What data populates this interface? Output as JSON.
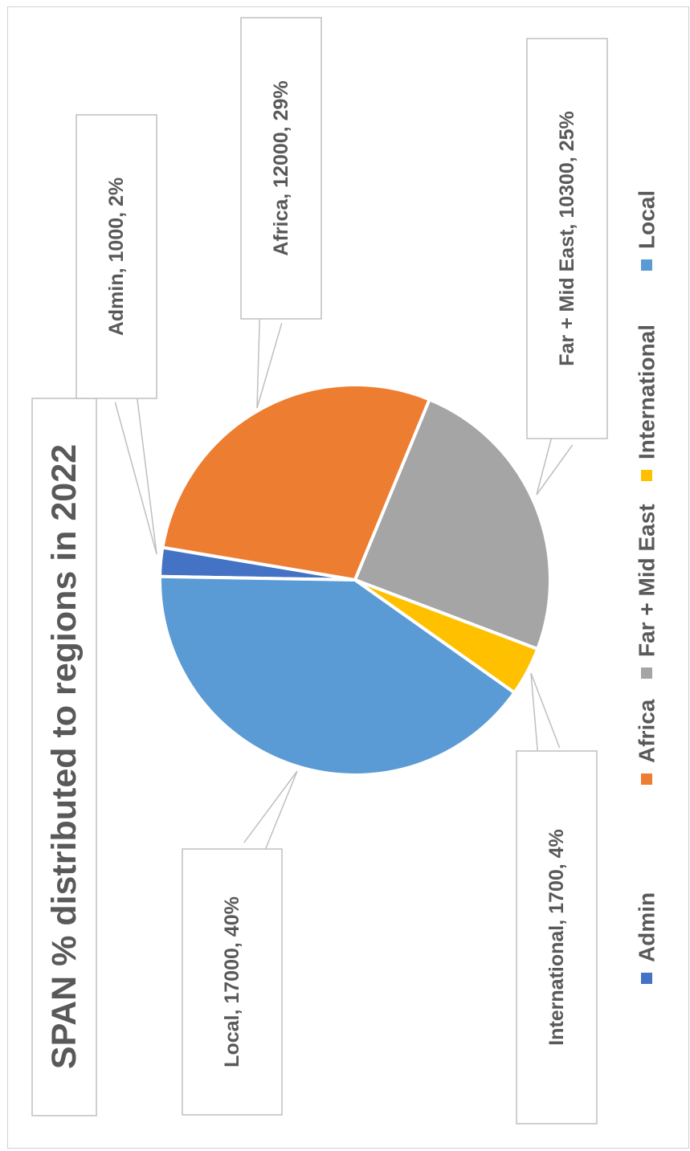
{
  "chart_data": {
    "type": "pie",
    "title": "SPAN % distributed to regions in 2022",
    "orientation": "rotated 90° counter-clockwise",
    "slices": [
      {
        "name": "Admin",
        "value": 1000,
        "percent": "2%",
        "label": "Admin, 1000, 2%",
        "color": "#4472C4"
      },
      {
        "name": "Africa",
        "value": 12000,
        "percent": "29%",
        "label": "Africa, 12000, 29%",
        "color": "#ED7D31"
      },
      {
        "name": "Far + Mid East",
        "value": 10300,
        "percent": "25%",
        "label": "Far + Mid East, 10300, 25%",
        "color": "#A5A5A5"
      },
      {
        "name": "International",
        "value": 1700,
        "percent": "4%",
        "label": "International, 1700, 4%",
        "color": "#FFC000"
      },
      {
        "name": "Local",
        "value": 17000,
        "percent": "40%",
        "label": "Local, 17000, 40%",
        "color": "#5B9BD5"
      }
    ],
    "legend": {
      "position": "bottom",
      "entries": [
        "Admin",
        "Africa",
        "Far + Mid East",
        "International",
        "Local"
      ]
    }
  }
}
